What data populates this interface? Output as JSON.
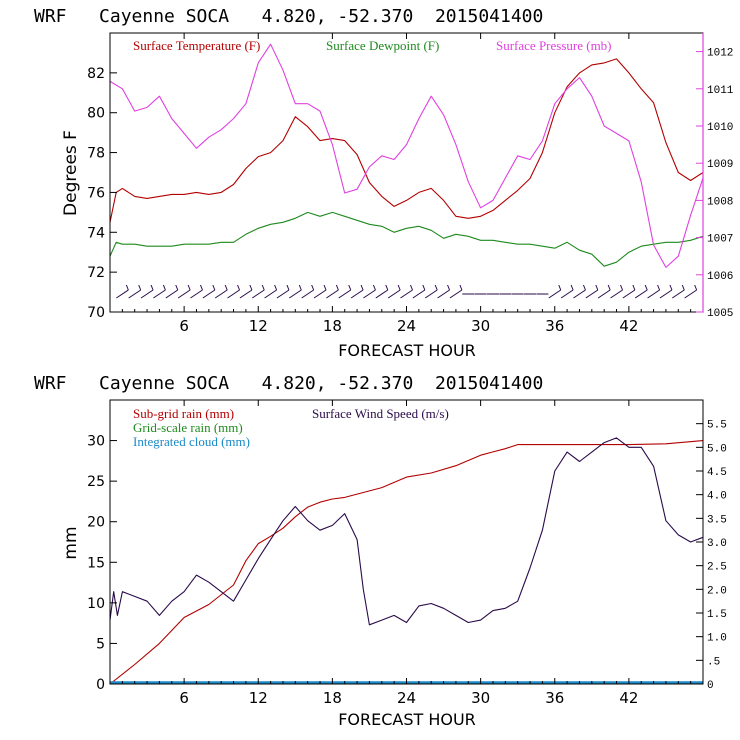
{
  "colors": {
    "temperature": "#b30000",
    "dewpoint": "#1f8a1f",
    "pressure": "#e040e0",
    "wind": "#2a0a4a",
    "subgrid_rain": "#b30000",
    "gridscale_rain": "#1f8a1f",
    "cloud": "#1a8ac8",
    "axis": "#000000"
  },
  "chart_data": [
    {
      "type": "line",
      "title": "WRF   Cayenne SOCA   4.820, -52.370  2015041400",
      "xlabel": "FORECAST HOUR",
      "ylabel": "Degrees F",
      "xlim": [
        0,
        48
      ],
      "ylim": [
        70,
        84
      ],
      "y2lim": [
        1005,
        1012.5
      ],
      "x_ticks": [
        "6",
        "12",
        "18",
        "24",
        "30",
        "36",
        "42"
      ],
      "y_ticks": [
        "70",
        "72",
        "74",
        "76",
        "78",
        "80",
        "82"
      ],
      "y2_ticks": [
        "1005",
        "1006",
        "1007",
        "1008",
        "1009",
        "1010",
        "1011",
        "1012"
      ],
      "series": [
        {
          "name": "Surface Temperature (F)",
          "axis": "left",
          "x": [
            0,
            0.5,
            1,
            2,
            3,
            4,
            5,
            6,
            7,
            8,
            9,
            10,
            11,
            12,
            13,
            14,
            15,
            16,
            17,
            18,
            19,
            20,
            21,
            22,
            23,
            24,
            25,
            26,
            27,
            28,
            29,
            30,
            31,
            32,
            33,
            34,
            35,
            36,
            37,
            38,
            39,
            40,
            41,
            42,
            43,
            44,
            45,
            46,
            47,
            48
          ],
          "values": [
            74.5,
            76.0,
            76.2,
            75.8,
            75.7,
            75.8,
            75.9,
            75.9,
            76.0,
            75.9,
            76.0,
            76.4,
            77.2,
            77.8,
            78.0,
            78.6,
            79.8,
            79.3,
            78.6,
            78.7,
            78.6,
            77.9,
            76.5,
            75.8,
            75.3,
            75.6,
            76.0,
            76.2,
            75.6,
            74.8,
            74.7,
            74.8,
            75.1,
            75.6,
            76.1,
            76.7,
            78.0,
            80.0,
            81.3,
            82.0,
            82.4,
            82.5,
            82.7,
            82.0,
            81.2,
            80.5,
            78.5,
            77.0,
            76.6,
            77.0
          ]
        },
        {
          "name": "Surface Dewpoint (F)",
          "axis": "left",
          "x": [
            0,
            0.5,
            1,
            2,
            3,
            4,
            5,
            6,
            7,
            8,
            9,
            10,
            11,
            12,
            13,
            14,
            15,
            16,
            17,
            18,
            19,
            20,
            21,
            22,
            23,
            24,
            25,
            26,
            27,
            28,
            29,
            30,
            31,
            32,
            33,
            34,
            35,
            36,
            37,
            38,
            39,
            40,
            41,
            42,
            43,
            44,
            45,
            46,
            47,
            48
          ],
          "values": [
            72.8,
            73.5,
            73.4,
            73.4,
            73.3,
            73.3,
            73.3,
            73.4,
            73.4,
            73.4,
            73.5,
            73.5,
            73.9,
            74.2,
            74.4,
            74.5,
            74.7,
            75.0,
            74.8,
            75.0,
            74.8,
            74.6,
            74.4,
            74.3,
            74.0,
            74.2,
            74.3,
            74.1,
            73.7,
            73.9,
            73.8,
            73.6,
            73.6,
            73.5,
            73.4,
            73.4,
            73.3,
            73.2,
            73.5,
            73.1,
            72.9,
            72.3,
            72.5,
            73.0,
            73.3,
            73.4,
            73.5,
            73.5,
            73.6,
            73.8
          ]
        },
        {
          "name": "Surface Pressure (mb)",
          "axis": "right",
          "x": [
            0,
            1,
            2,
            3,
            4,
            5,
            6,
            7,
            8,
            9,
            10,
            11,
            12,
            13,
            14,
            15,
            16,
            17,
            18,
            19,
            20,
            21,
            22,
            23,
            24,
            25,
            26,
            27,
            28,
            29,
            30,
            31,
            32,
            33,
            34,
            35,
            36,
            37,
            38,
            39,
            40,
            41,
            42,
            43,
            44,
            45,
            46,
            47,
            48
          ],
          "values": [
            1011.2,
            1011.0,
            1010.4,
            1010.5,
            1010.8,
            1010.2,
            1009.8,
            1009.4,
            1009.7,
            1009.9,
            1010.2,
            1010.6,
            1011.7,
            1012.2,
            1011.5,
            1010.6,
            1010.6,
            1010.4,
            1009.5,
            1008.2,
            1008.3,
            1008.9,
            1009.2,
            1009.1,
            1009.5,
            1010.2,
            1010.8,
            1010.3,
            1009.5,
            1008.5,
            1007.8,
            1008.0,
            1008.6,
            1009.2,
            1009.1,
            1009.6,
            1010.6,
            1011.0,
            1011.3,
            1010.8,
            1010.0,
            1009.8,
            1009.6,
            1008.5,
            1006.8,
            1006.2,
            1006.5,
            1007.6,
            1008.6
          ]
        }
      ],
      "legend": [
        "Surface Temperature (F)",
        "Surface Dewpoint (F)",
        "Surface Pressure (mb)"
      ],
      "legend_position": "top"
    },
    {
      "type": "line",
      "title": "WRF   Cayenne SOCA   4.820, -52.370  2015041400",
      "xlabel": "FORECAST HOUR",
      "ylabel": "mm",
      "xlim": [
        0,
        48
      ],
      "ylim": [
        0,
        35
      ],
      "y2lim": [
        0,
        6
      ],
      "x_ticks": [
        "6",
        "12",
        "18",
        "24",
        "30",
        "36",
        "42"
      ],
      "y_ticks": [
        "0",
        "5",
        "10",
        "15",
        "20",
        "25",
        "30"
      ],
      "y2_ticks": [
        "0",
        ".5",
        "1.0",
        "1.5",
        "2.0",
        "2.5",
        "3.0",
        "3.5",
        "4.0",
        "4.5",
        "5.0",
        "5.5"
      ],
      "series": [
        {
          "name": "Sub-grid rain (mm)",
          "axis": "left",
          "x": [
            0,
            2,
            4,
            6,
            8,
            10,
            11,
            12,
            13,
            14,
            15,
            16,
            17,
            18,
            19,
            20,
            22,
            24,
            26,
            28,
            30,
            31,
            32,
            33,
            36,
            39,
            42,
            45,
            48
          ],
          "values": [
            0,
            2.4,
            5.0,
            8.2,
            9.8,
            12.2,
            15.2,
            17.3,
            18.2,
            19.2,
            20.6,
            21.8,
            22.4,
            22.8,
            23.0,
            23.4,
            24.2,
            25.5,
            26.0,
            26.9,
            28.2,
            28.6,
            29.0,
            29.5,
            29.5,
            29.5,
            29.5,
            29.6,
            30.0
          ]
        },
        {
          "name": "Grid-scale rain (mm)",
          "axis": "left",
          "x": [
            0,
            48
          ],
          "values": [
            0,
            0
          ]
        },
        {
          "name": "Integrated cloud (mm)",
          "axis": "left",
          "x": [
            0,
            48
          ],
          "values": [
            0.2,
            0.2
          ]
        },
        {
          "name": "Surface Wind Speed (m/s)",
          "axis": "right",
          "x": [
            0,
            0.3,
            0.6,
            1,
            2,
            3,
            4,
            5,
            6,
            7,
            8,
            9,
            10,
            11,
            12,
            13,
            14,
            15,
            16,
            17,
            18,
            19,
            20,
            20.5,
            21,
            22,
            23,
            24,
            25,
            26,
            27,
            28,
            29,
            30,
            31,
            32,
            33,
            34,
            35,
            36,
            37,
            38,
            39,
            40,
            41,
            42,
            43,
            44,
            45,
            46,
            47,
            48
          ],
          "values": [
            1.35,
            1.95,
            1.45,
            1.95,
            1.85,
            1.75,
            1.45,
            1.75,
            1.95,
            2.3,
            2.15,
            1.95,
            1.75,
            2.2,
            2.65,
            3.05,
            3.45,
            3.75,
            3.45,
            3.25,
            3.35,
            3.6,
            3.05,
            2.0,
            1.25,
            1.35,
            1.45,
            1.3,
            1.65,
            1.7,
            1.6,
            1.45,
            1.3,
            1.35,
            1.55,
            1.6,
            1.75,
            2.45,
            3.25,
            4.5,
            4.9,
            4.7,
            4.9,
            5.1,
            5.2,
            5.0,
            5.0,
            4.6,
            3.45,
            3.15,
            3.0,
            3.1
          ]
        }
      ],
      "legend": [
        "Sub-grid rain (mm)",
        "Surface Wind Speed (m/s)",
        "Grid-scale rain (mm)",
        "Integrated cloud (mm)"
      ],
      "legend_position": "top-left"
    }
  ]
}
